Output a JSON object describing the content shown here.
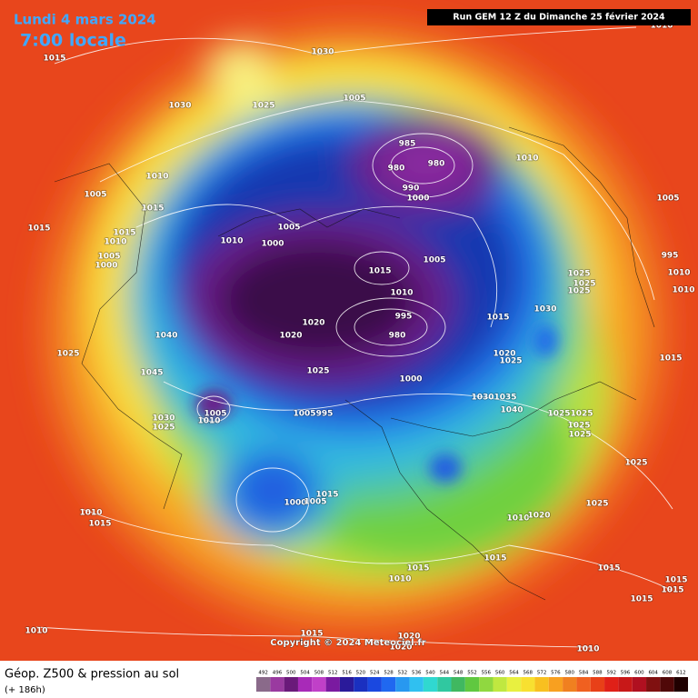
{
  "header": {
    "date": "Lundi 4 mars 2024",
    "time": "7:00 locale",
    "run": "Run GEM 12 Z du Dimanche 25 février 2024"
  },
  "copyright": "Copyright © 2024 Meteociel.fr",
  "legend": {
    "title": "Géop. Z500 & pression au sol",
    "subtitle": "(+ 186h)",
    "scale": [
      492,
      496,
      500,
      504,
      508,
      512,
      516,
      520,
      524,
      528,
      532,
      536,
      540,
      544,
      548,
      552,
      556,
      560,
      564,
      568,
      572,
      576,
      580,
      584,
      588,
      592,
      596,
      600,
      604,
      608,
      612
    ],
    "colors": [
      "#8a6a8a",
      "#9a3aa0",
      "#6a1a7a",
      "#a82ab8",
      "#c040c8",
      "#7a1aa0",
      "#2a1a9a",
      "#1a30c0",
      "#1a48e0",
      "#2068f0",
      "#2898f0",
      "#30c0f0",
      "#30d8d0",
      "#30c8a0",
      "#40b860",
      "#60c840",
      "#90d840",
      "#c0e840",
      "#e8f040",
      "#f8e030",
      "#f8c020",
      "#f8a020",
      "#f08020",
      "#f06020",
      "#e84018",
      "#e02018",
      "#c81818",
      "#b01020",
      "#801010",
      "#500808",
      "#200000"
    ]
  },
  "map": {
    "isobar_labels": [
      "1015",
      "1030",
      "1030",
      "1025",
      "1005",
      "985",
      "980",
      "980",
      "990",
      "1000",
      "1010",
      "1010",
      "1005",
      "1015",
      "1005",
      "1015",
      "1015",
      "1010",
      "1010",
      "1000",
      "1015",
      "1005",
      "1005",
      "1000",
      "1010",
      "1020",
      "995",
      "980",
      "1020",
      "1040",
      "1025",
      "1015",
      "1030",
      "1025",
      "1025",
      "1025",
      "995",
      "1010",
      "1010",
      "1005",
      "1010",
      "1045",
      "1025",
      "1000",
      "1020",
      "1025",
      "1030",
      "1035",
      "1040",
      "1025",
      "1025",
      "1025",
      "1025",
      "1015",
      "1030",
      "1025",
      "1010",
      "1005",
      "1005",
      "995",
      "1000",
      "1005",
      "1015",
      "1010",
      "1015",
      "1025",
      "1025",
      "1010",
      "1020",
      "1015",
      "1015",
      "1010",
      "1015",
      "1015",
      "1015",
      "1015",
      "1010",
      "1015",
      "1020",
      "1020",
      "1010"
    ]
  }
}
